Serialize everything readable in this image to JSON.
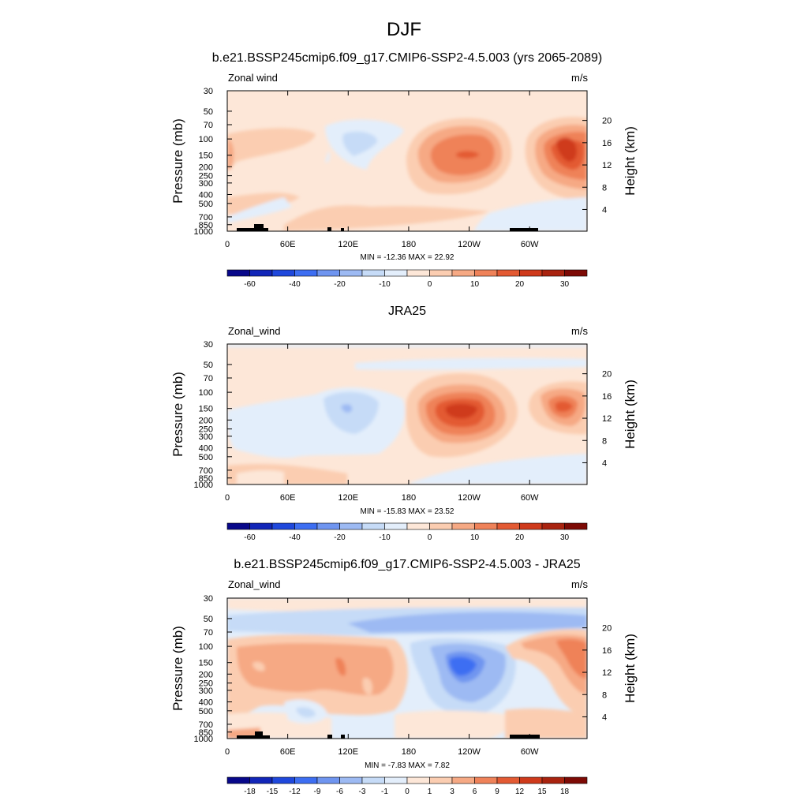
{
  "figure": {
    "season": "DJF",
    "units": "m/s"
  },
  "colors": {
    "main_scale": [
      "#08088a",
      "#1226b8",
      "#1f48dc",
      "#3d6ef2",
      "#6f95f0",
      "#9dbaf3",
      "#c6dbf7",
      "#e3eefb",
      "#fde7d8",
      "#fbcdb1",
      "#f6a984",
      "#ef8259",
      "#e35a33",
      "#cf3a1b",
      "#a9230f",
      "#7d0a05"
    ],
    "terrain": "#000000"
  },
  "chart_data": [
    {
      "type": "contour",
      "title": "b.e21.BSSP245cmip6.f09_g17.CMIP6-SSP2-4.5.003 (yrs 2065-2089)",
      "left_label": "Zonal wind",
      "right_label": "m/s",
      "ylabel": "Pressure (mb)",
      "y2label": "Height (km)",
      "x_ticks": [
        "0",
        "60E",
        "120E",
        "180",
        "120W",
        "60W"
      ],
      "y_ticks": [
        "30",
        "50",
        "70",
        "100",
        "150",
        "200",
        "250",
        "300",
        "400",
        "500",
        "700",
        "850",
        "1000"
      ],
      "y2_ticks": [
        "20",
        "16",
        "12",
        "8",
        "4"
      ],
      "xlim": [
        0,
        357
      ],
      "ylim": [
        1000,
        30
      ],
      "stats": "MIN = -12.36  MAX =  22.92",
      "min": -12.36,
      "max": 22.92,
      "colorbar_labels": [
        "-60",
        "-40",
        "-20",
        "-10",
        "0",
        "10",
        "20",
        "30"
      ],
      "features": [
        {
          "lon": 125,
          "p": 110,
          "value": -7
        },
        {
          "lon": 237,
          "p": 150,
          "value": 18
        },
        {
          "lon": 330,
          "p": 140,
          "value": 22.9
        },
        {
          "lon": 30,
          "p": 120,
          "value": 6
        },
        {
          "lon": 120,
          "p": 800,
          "value": 5
        }
      ]
    },
    {
      "type": "contour",
      "title": "JRA25",
      "left_label": "Zonal_wind",
      "right_label": "m/s",
      "ylabel": "Pressure (mb)",
      "y2label": "Height (km)",
      "x_ticks": [
        "0",
        "60E",
        "120E",
        "180",
        "120W",
        "60W"
      ],
      "y_ticks": [
        "30",
        "50",
        "70",
        "100",
        "150",
        "200",
        "250",
        "300",
        "400",
        "500",
        "700",
        "850",
        "1000"
      ],
      "y2_ticks": [
        "20",
        "16",
        "12",
        "8",
        "4"
      ],
      "xlim": [
        0,
        357
      ],
      "ylim": [
        1000,
        30
      ],
      "stats": "MIN = -15.83  MAX =  23.52",
      "min": -15.83,
      "max": 23.52,
      "colorbar_labels": [
        "-60",
        "-40",
        "-20",
        "-10",
        "0",
        "10",
        "20",
        "30"
      ],
      "features": [
        {
          "lon": 120,
          "p": 160,
          "value": -12
        },
        {
          "lon": 228,
          "p": 170,
          "value": 23.5
        },
        {
          "lon": 330,
          "p": 150,
          "value": 14
        },
        {
          "lon": 60,
          "p": 300,
          "value": -4
        }
      ]
    },
    {
      "type": "contour",
      "title": "b.e21.BSSP245cmip6.f09_g17.CMIP6-SSP2-4.5.003 - JRA25",
      "left_label": "Zonal_wind",
      "right_label": "m/s",
      "ylabel": "Pressure (mb)",
      "y2label": "Height (km)",
      "x_ticks": [
        "0",
        "60E",
        "120E",
        "180",
        "120W",
        "60W"
      ],
      "y_ticks": [
        "30",
        "50",
        "70",
        "100",
        "150",
        "200",
        "250",
        "300",
        "400",
        "500",
        "700",
        "850",
        "1000"
      ],
      "y2_ticks": [
        "20",
        "16",
        "12",
        "8",
        "4"
      ],
      "xlim": [
        0,
        357
      ],
      "ylim": [
        1000,
        30
      ],
      "stats": "MIN = -7.83  MAX =  7.82",
      "min": -7.83,
      "max": 7.82,
      "colorbar_labels": [
        "-18",
        "-15",
        "-12",
        "-9",
        "-6",
        "-3",
        "-1",
        "0",
        "1",
        "3",
        "6",
        "9",
        "12",
        "15",
        "18"
      ],
      "features": [
        {
          "lon": 225,
          "p": 170,
          "value": -7.8
        },
        {
          "lon": 230,
          "p": 60,
          "value": -4
        },
        {
          "lon": 80,
          "p": 200,
          "value": 4
        },
        {
          "lon": 340,
          "p": 170,
          "value": 7.8
        },
        {
          "lon": 110,
          "p": 170,
          "value": 6
        }
      ]
    }
  ]
}
